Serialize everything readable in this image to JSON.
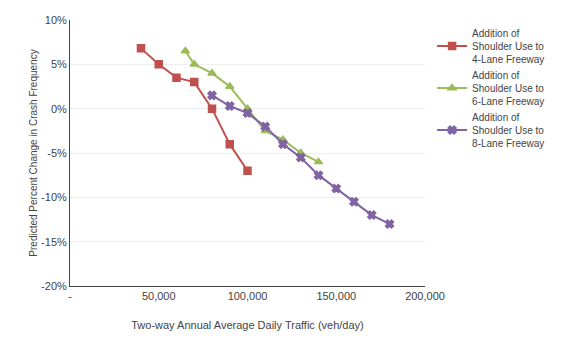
{
  "chart_data": {
    "type": "line",
    "x_label": "Two-way Annual Average Daily Traffic (veh/day)",
    "y_label": "Predicted Percent Change in Crash Frequency",
    "series": [
      {
        "name": "Addition of\nShoulder Use to\n4-Lane Freeway",
        "color": "#C0504D",
        "marker": "square",
        "x": [
          40000,
          50000,
          60000,
          70000,
          80000,
          90000,
          100000
        ],
        "values": [
          6.8,
          5.0,
          3.5,
          3.0,
          0.0,
          -4.0,
          -7.0
        ]
      },
      {
        "name": "Addition of\nShoulder Use to\n6-Lane Freeway",
        "color": "#9BBB59",
        "marker": "triangle-up",
        "x": [
          65000,
          70000,
          80000,
          90000,
          100000,
          110000,
          120000,
          130000,
          140000
        ],
        "values": [
          6.5,
          5.0,
          4.0,
          2.5,
          0.0,
          -2.5,
          -3.5,
          -5.0,
          -6.0
        ]
      },
      {
        "name": "Addition of\nShoulder Use to\n8-Lane Freeway",
        "color": "#8064A2",
        "marker": "x",
        "x": [
          80000,
          90000,
          100000,
          110000,
          120000,
          130000,
          140000,
          150000,
          160000,
          170000,
          180000
        ],
        "values": [
          1.5,
          0.3,
          -0.5,
          -2.0,
          -4.0,
          -5.5,
          -7.5,
          -9.0,
          -10.5,
          -12.0,
          -13.0
        ]
      }
    ],
    "xlim": [
      0,
      200000
    ],
    "xticks": [
      {
        "value": 0,
        "label": "-"
      },
      {
        "value": 50000,
        "label": "50,000"
      },
      {
        "value": 100000,
        "label": "100,000"
      },
      {
        "value": 150000,
        "label": "150,000"
      },
      {
        "value": 200000,
        "label": "200,000"
      }
    ],
    "ylim": [
      -20,
      10
    ],
    "yticks": [
      {
        "value": -20,
        "label": "-20%"
      },
      {
        "value": -15,
        "label": "-15%"
      },
      {
        "value": -10,
        "label": "-10%"
      },
      {
        "value": -5,
        "label": "-5%"
      },
      {
        "value": 0,
        "label": "0%"
      },
      {
        "value": 5,
        "label": "5%"
      },
      {
        "value": 10,
        "label": "10%"
      }
    ],
    "grid": "y",
    "legend": "right"
  }
}
